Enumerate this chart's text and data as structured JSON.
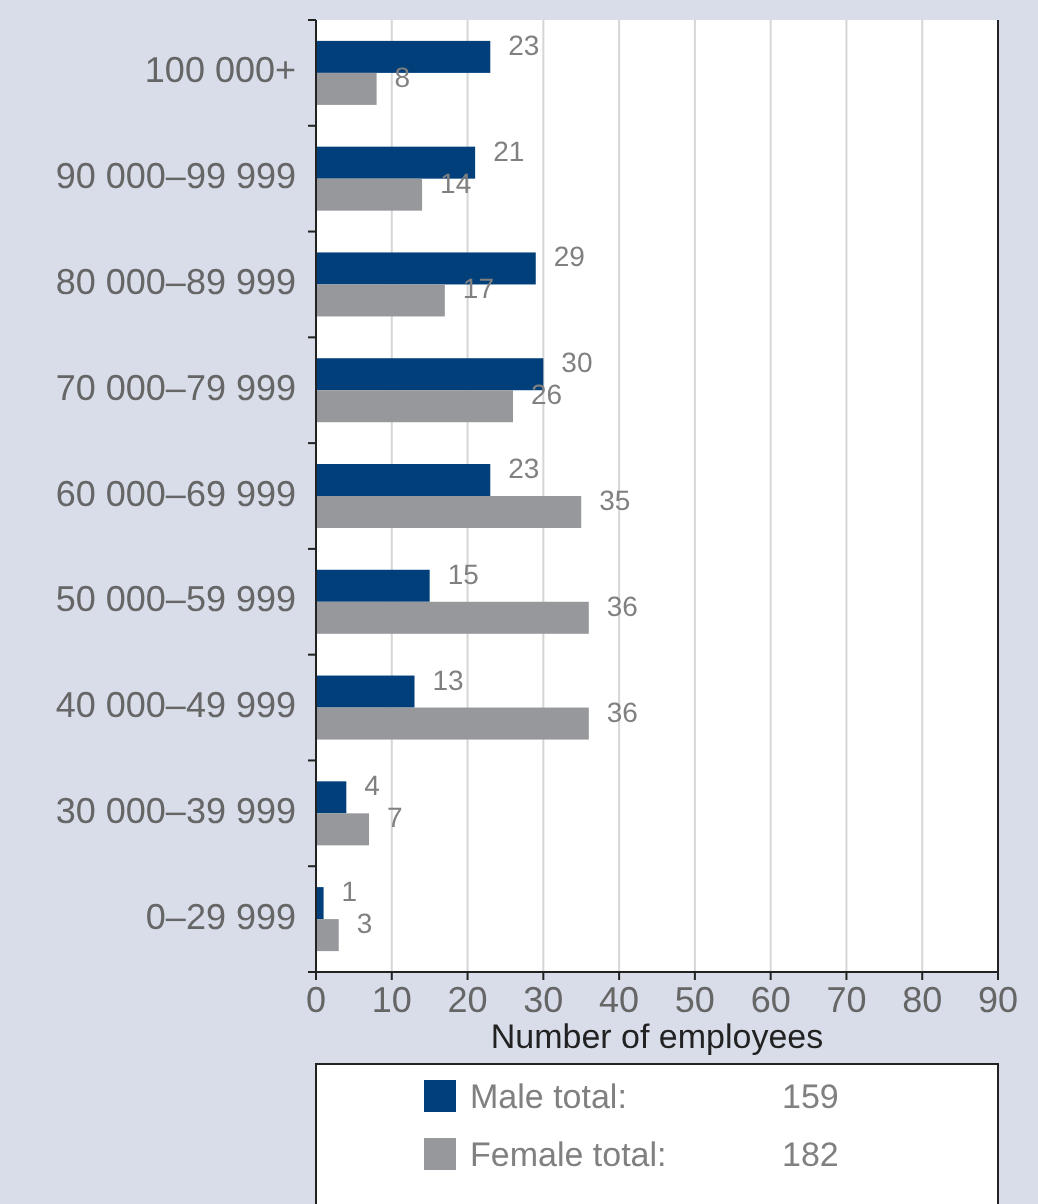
{
  "chart_data": {
    "type": "bar",
    "orientation": "horizontal",
    "xlabel": "Number of employees",
    "categories": [
      "100 000+",
      "90 000–99 999",
      "80 000–89 999",
      "70 000–79 999",
      "60 000–69 999",
      "50 000–59 999",
      "40 000–49 999",
      "30 000–39 999",
      "0–29 999"
    ],
    "series": [
      {
        "name": "Male total:",
        "color": "#003f7a",
        "values": [
          23,
          21,
          29,
          30,
          23,
          15,
          13,
          4,
          1
        ]
      },
      {
        "name": "Female total:",
        "color": "#97989b",
        "values": [
          8,
          14,
          17,
          26,
          35,
          36,
          36,
          7,
          3
        ]
      }
    ],
    "xlim": [
      0,
      90
    ],
    "xticks": [
      0,
      10,
      20,
      30,
      40,
      50,
      60,
      70,
      80,
      90
    ],
    "grid": "x",
    "legend": "bottom",
    "data_labels": true,
    "annotations": [
      "159",
      "182"
    ]
  }
}
